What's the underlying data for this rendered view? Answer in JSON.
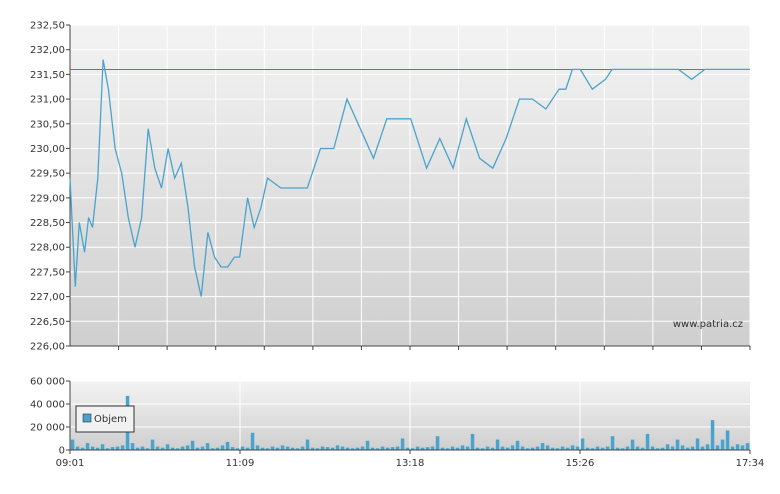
{
  "chart_data": [
    {
      "type": "line",
      "title": "",
      "xlabel": "",
      "ylabel": "",
      "ylim": [
        226.0,
        232.5
      ],
      "y_ticks": [
        "232,50",
        "232,00",
        "231,50",
        "231,00",
        "230,50",
        "230,00",
        "229,50",
        "229,00",
        "228,50",
        "228,00",
        "227,50",
        "227,00",
        "226,50",
        "226,00"
      ],
      "reference_line": 231.6,
      "watermark": "www.patria.cz",
      "grid": true,
      "series": [
        {
          "color": "#4aa3cc",
          "x": [
            "09:01",
            "09:05",
            "09:08",
            "09:12",
            "09:15",
            "09:18",
            "09:22",
            "09:26",
            "09:30",
            "09:35",
            "09:40",
            "09:45",
            "09:50",
            "09:55",
            "10:00",
            "10:05",
            "10:10",
            "10:15",
            "10:20",
            "10:25",
            "10:30",
            "10:35",
            "10:40",
            "10:45",
            "10:50",
            "10:55",
            "11:00",
            "11:05",
            "11:09",
            "11:15",
            "11:20",
            "11:25",
            "11:30",
            "11:40",
            "11:50",
            "12:00",
            "12:10",
            "12:20",
            "12:30",
            "12:40",
            "12:50",
            "13:00",
            "13:10",
            "13:18",
            "13:30",
            "13:40",
            "13:50",
            "14:00",
            "14:10",
            "14:20",
            "14:30",
            "14:40",
            "14:50",
            "15:00",
            "15:10",
            "15:15",
            "15:20",
            "15:26",
            "15:35",
            "15:45",
            "15:50",
            "15:55",
            "16:00",
            "16:10",
            "16:20",
            "16:30",
            "16:40",
            "16:50",
            "17:00",
            "17:10",
            "17:20",
            "17:30",
            "17:34"
          ],
          "values": [
            229.4,
            227.2,
            228.5,
            227.9,
            228.6,
            228.4,
            229.4,
            231.8,
            231.2,
            230.0,
            229.5,
            228.6,
            228.0,
            228.6,
            230.4,
            229.6,
            229.2,
            230.0,
            229.4,
            229.7,
            228.8,
            227.6,
            227.0,
            228.3,
            227.8,
            227.6,
            227.6,
            227.8,
            227.8,
            229.0,
            228.4,
            228.8,
            229.4,
            229.2,
            229.2,
            229.2,
            230.0,
            230.0,
            231.0,
            230.4,
            229.8,
            230.6,
            230.6,
            230.6,
            229.6,
            230.2,
            229.6,
            230.6,
            229.8,
            229.6,
            230.2,
            231.0,
            231.0,
            230.8,
            231.2,
            231.2,
            231.6,
            231.6,
            231.2,
            231.4,
            231.6,
            231.6,
            231.6,
            231.6,
            231.6,
            231.6,
            231.6,
            231.4,
            231.6,
            231.6,
            231.6,
            231.6,
            231.6
          ]
        }
      ]
    },
    {
      "type": "bar",
      "title": "",
      "xlabel": "",
      "ylabel": "",
      "ylim": [
        0,
        60000
      ],
      "y_ticks": [
        "60 000",
        "40 000",
        "20 000",
        "0"
      ],
      "x_ticks": [
        "09:01",
        "11:09",
        "13:18",
        "15:26",
        "17:34"
      ],
      "legend": {
        "position": "bottom-left",
        "label": "Objem"
      },
      "series": [
        {
          "name": "Objem",
          "color": "#4aa3cc",
          "values": [
            9000,
            3000,
            2000,
            6000,
            3000,
            2000,
            5000,
            1500,
            2500,
            3000,
            4000,
            47000,
            6000,
            2000,
            3000,
            1500,
            9000,
            3000,
            2000,
            5000,
            2000,
            1500,
            3000,
            4000,
            8000,
            2000,
            3000,
            6000,
            1500,
            2000,
            4000,
            7000,
            2500,
            1500,
            3000,
            2000,
            15000,
            4000,
            2000,
            1500,
            3000,
            2000,
            4000,
            3000,
            2000,
            1500,
            3000,
            9000,
            2000,
            1500,
            3000,
            2500,
            2000,
            4000,
            3000,
            2000,
            1500,
            2000,
            3000,
            8000,
            2000,
            1500,
            3000,
            2000,
            2500,
            3000,
            10000,
            2000,
            1500,
            3000,
            2000,
            2500,
            3000,
            12000,
            2000,
            1500,
            3000,
            2000,
            4000,
            3000,
            14000,
            2000,
            1500,
            3000,
            2000,
            9000,
            3000,
            2000,
            4000,
            8000,
            3000,
            1500,
            2000,
            3000,
            6000,
            4000,
            2000,
            1500,
            3000,
            2000,
            4000,
            3000,
            10000,
            2000,
            1500,
            3000,
            2000,
            3000,
            12000,
            2000,
            1500,
            3000,
            9000,
            3000,
            2000,
            14000,
            3000,
            1500,
            2000,
            5000,
            3000,
            9000,
            4000,
            2000,
            3000,
            10000,
            3000,
            5000,
            26000,
            4000,
            9000,
            17000,
            3000,
            5000,
            4000,
            6000
          ]
        }
      ]
    }
  ]
}
